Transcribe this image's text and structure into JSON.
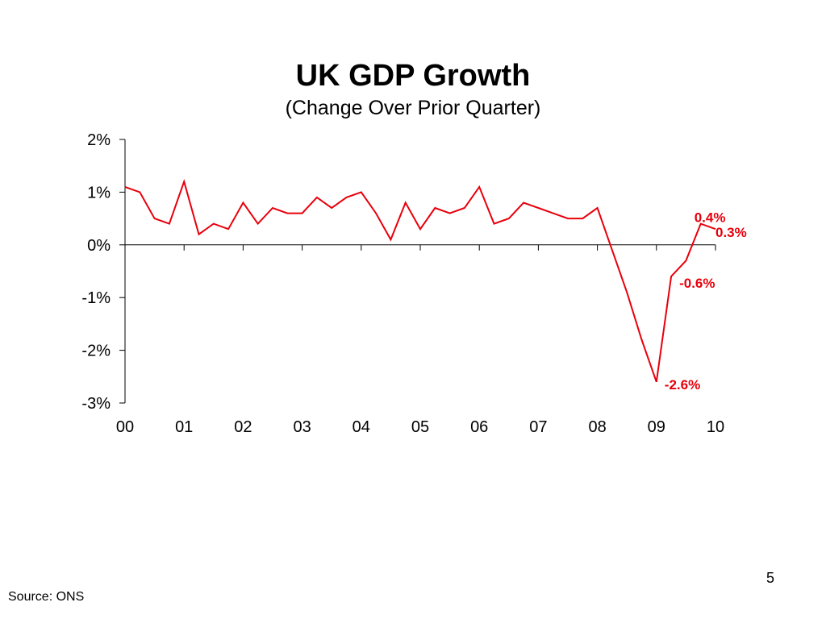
{
  "slide": {
    "title": "UK GDP Growth",
    "subtitle": "(Change Over Prior Quarter)",
    "source": "Source: ONS",
    "page_number": "5"
  },
  "chart_data": {
    "type": "line",
    "title": "UK GDP Growth",
    "subtitle": "(Change Over Prior Quarter)",
    "xlabel": "",
    "ylabel": "",
    "xlim": [
      2000,
      2010
    ],
    "ylim": [
      -3,
      2
    ],
    "x_ticks": [
      2000,
      2001,
      2002,
      2003,
      2004,
      2005,
      2006,
      2007,
      2008,
      2009,
      2010
    ],
    "x_tick_labels": [
      "00",
      "01",
      "02",
      "03",
      "04",
      "05",
      "06",
      "07",
      "08",
      "09",
      "10"
    ],
    "y_ticks": [
      -3,
      -2,
      -1,
      0,
      1,
      2
    ],
    "y_tick_labels": [
      "-3%",
      "-2%",
      "-1%",
      "0%",
      "1%",
      "2%"
    ],
    "grid": false,
    "line_color": "#e8000b",
    "series": [
      {
        "name": "",
        "x": [
          2000.0,
          2000.25,
          2000.5,
          2000.75,
          2001.0,
          2001.25,
          2001.5,
          2001.75,
          2002.0,
          2002.25,
          2002.5,
          2002.75,
          2003.0,
          2003.25,
          2003.5,
          2003.75,
          2004.0,
          2004.25,
          2004.5,
          2004.75,
          2005.0,
          2005.25,
          2005.5,
          2005.75,
          2006.0,
          2006.25,
          2006.5,
          2006.75,
          2007.0,
          2007.25,
          2007.5,
          2007.75,
          2008.0,
          2008.25,
          2008.5,
          2008.75,
          2009.0,
          2009.25,
          2009.5,
          2009.75,
          2010.0
        ],
        "values": [
          1.1,
          1.0,
          0.5,
          0.4,
          1.2,
          0.2,
          0.4,
          0.3,
          0.8,
          0.4,
          0.7,
          0.6,
          0.6,
          0.9,
          0.7,
          0.9,
          1.0,
          0.6,
          0.1,
          0.8,
          0.3,
          0.7,
          0.6,
          0.7,
          1.1,
          0.4,
          0.5,
          0.8,
          0.7,
          0.6,
          0.5,
          0.5,
          0.7,
          -0.1,
          -0.9,
          -1.8,
          -2.6,
          -0.6,
          -0.3,
          0.4,
          0.3
        ]
      }
    ],
    "annotations": [
      {
        "text": "0.4%",
        "x": 2009.75,
        "y": 0.4
      },
      {
        "text": "0.3%",
        "x": 2010.0,
        "y": 0.3
      },
      {
        "text": "-0.6%",
        "x": 2009.25,
        "y": -0.6
      },
      {
        "text": "-2.6%",
        "x": 2009.0,
        "y": -2.6
      }
    ]
  }
}
